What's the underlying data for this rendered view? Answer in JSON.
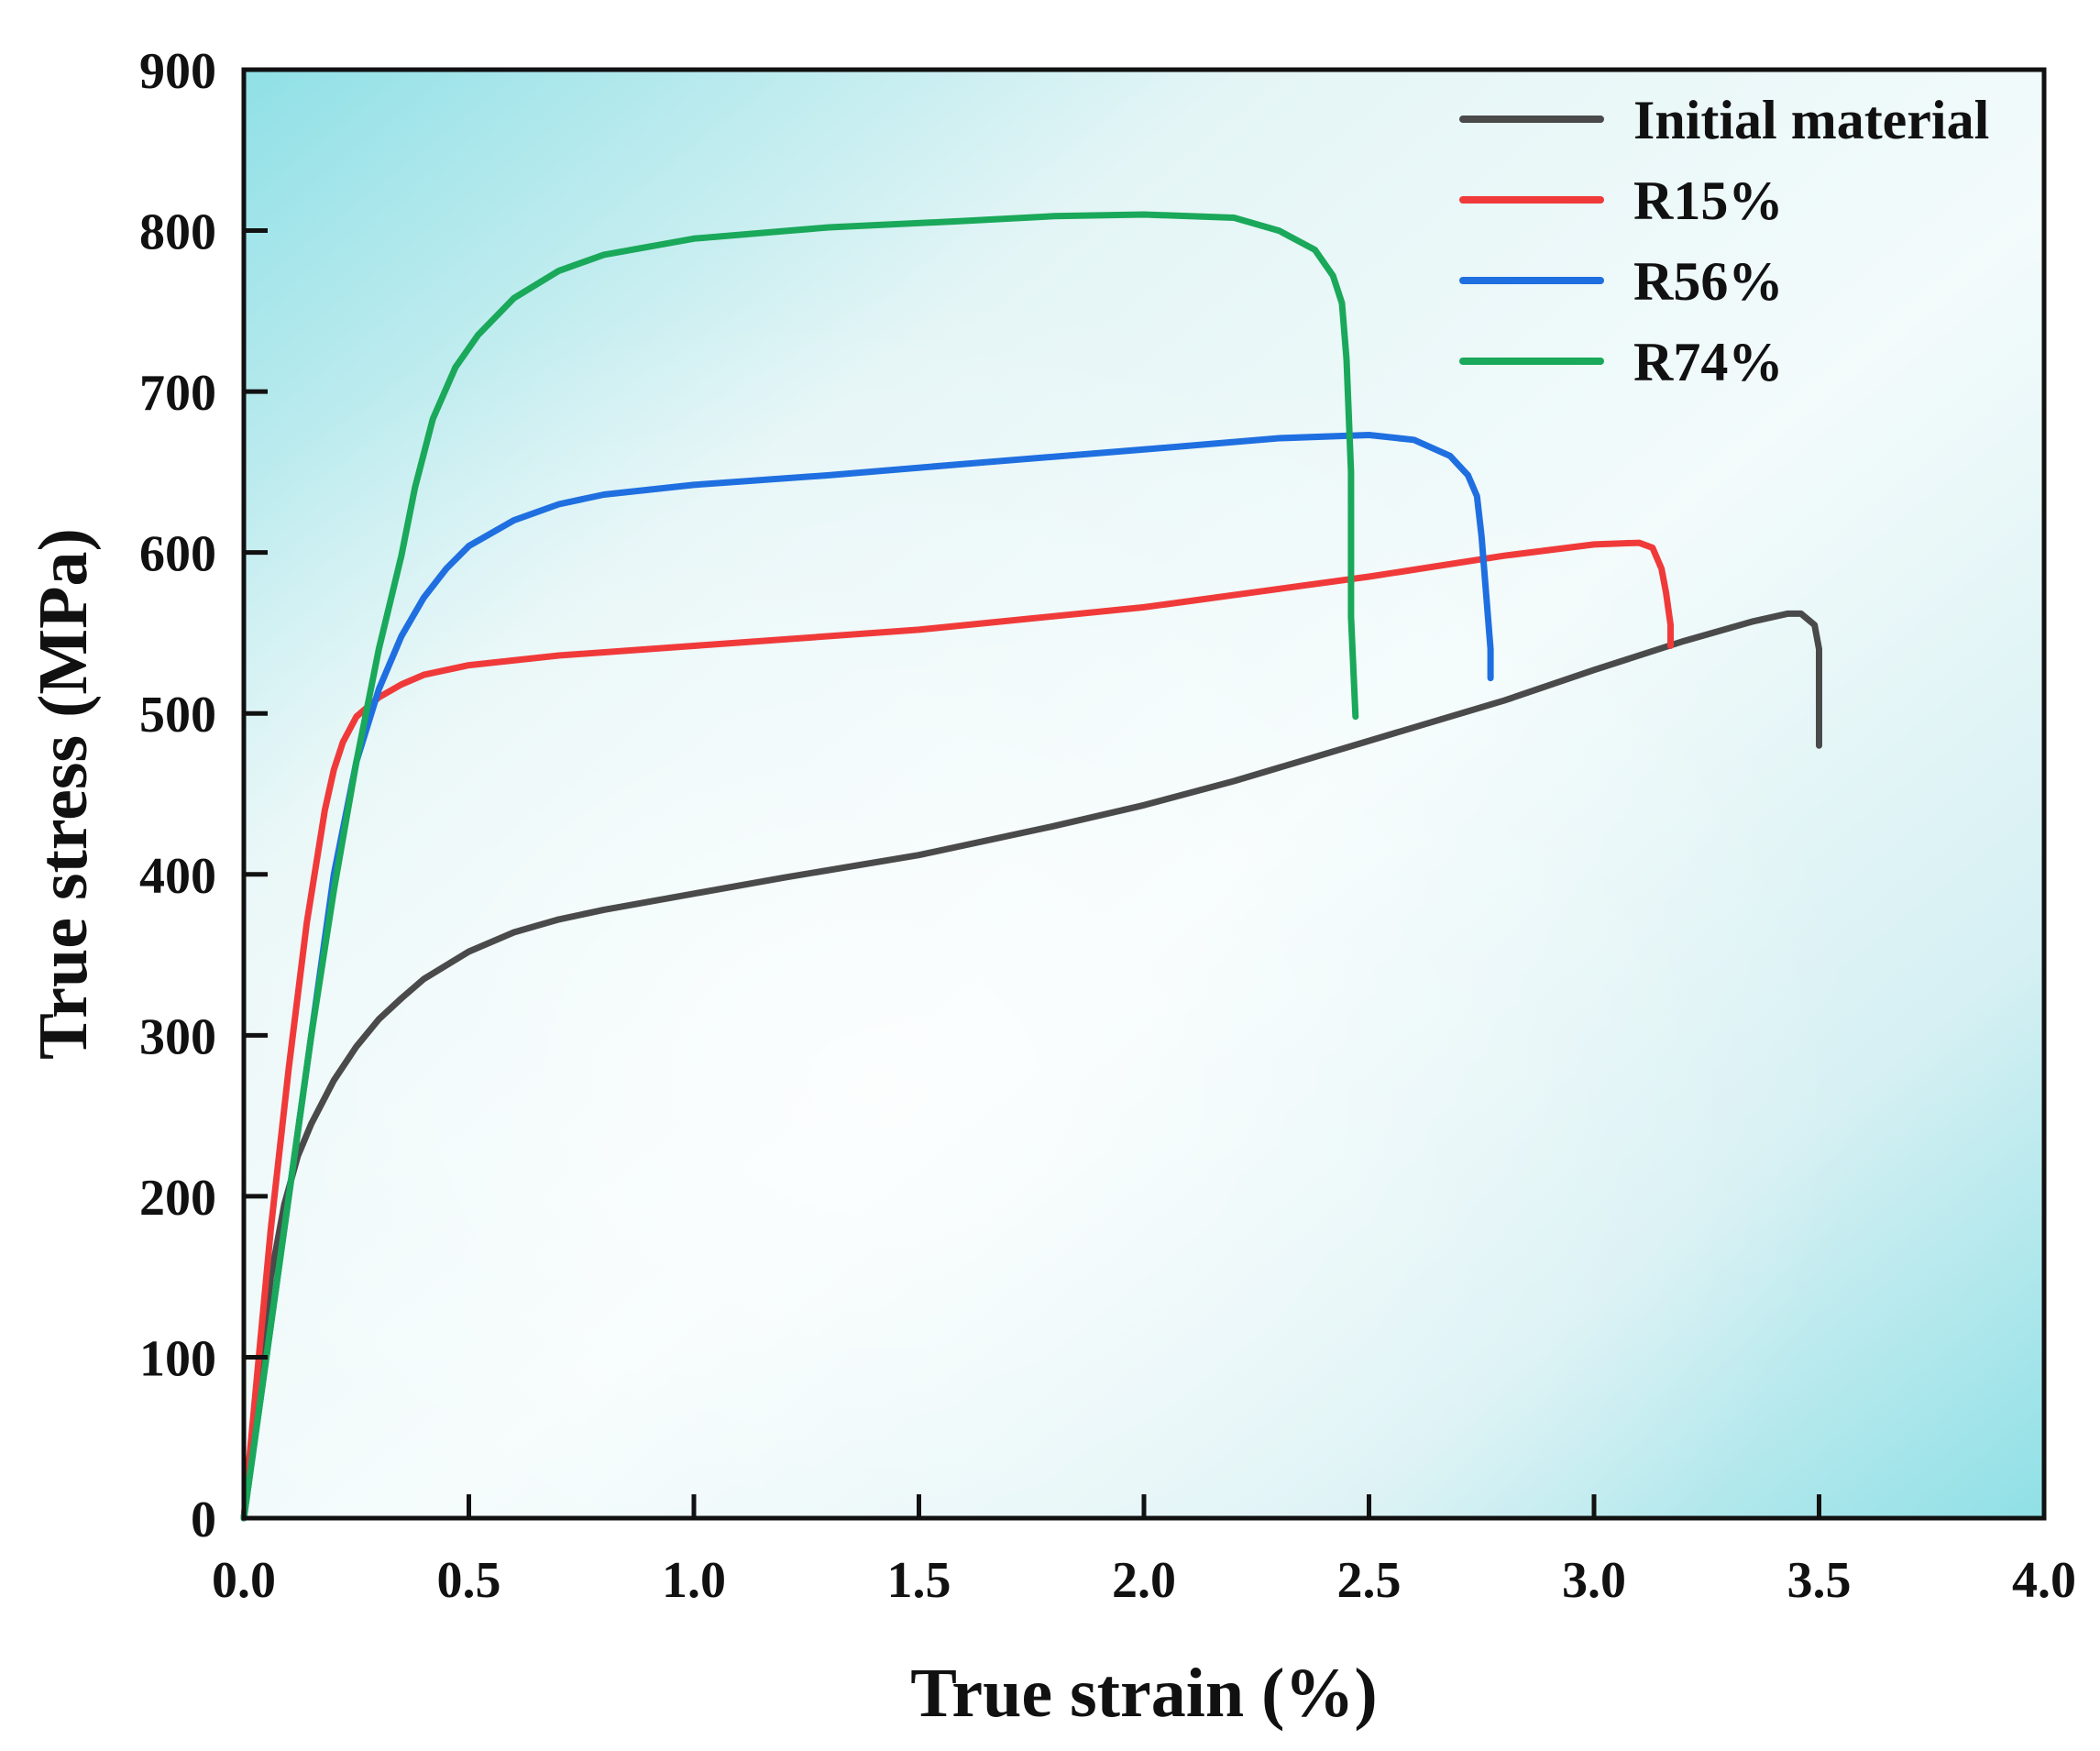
{
  "chart_data": {
    "type": "line",
    "title": "",
    "xlabel": "True strain (%)",
    "ylabel": "True stress (MPa)",
    "xlim": [
      0,
      4
    ],
    "ylim": [
      0,
      900
    ],
    "xticks": [
      0.0,
      0.5,
      1.0,
      1.5,
      2.0,
      2.5,
      3.0,
      3.5,
      4.0
    ],
    "xtick_labels": [
      "0.0",
      "0.5",
      "1.0",
      "1.5",
      "2.0",
      "2.5",
      "3.0",
      "3.5",
      "4.0"
    ],
    "yticks": [
      0,
      100,
      200,
      300,
      400,
      500,
      600,
      700,
      800,
      900
    ],
    "ytick_labels": [
      "0",
      "100",
      "200",
      "300",
      "400",
      "500",
      "600",
      "700",
      "800",
      "900"
    ],
    "grid": false,
    "legend_position": "top-right",
    "series": [
      {
        "name": "Initial material",
        "color": "#4a4a4a",
        "x": [
          0,
          0.03,
          0.06,
          0.09,
          0.12,
          0.15,
          0.2,
          0.25,
          0.3,
          0.35,
          0.4,
          0.5,
          0.6,
          0.7,
          0.8,
          1.0,
          1.2,
          1.5,
          1.8,
          2.0,
          2.2,
          2.5,
          2.8,
          3.0,
          3.2,
          3.35,
          3.43,
          3.46,
          3.49,
          3.5,
          3.5
        ],
        "y": [
          0,
          80,
          150,
          195,
          225,
          245,
          272,
          293,
          310,
          323,
          335,
          352,
          364,
          372,
          378,
          388,
          398,
          412,
          430,
          443,
          458,
          483,
          508,
          527,
          545,
          557,
          562,
          562,
          555,
          540,
          480
        ]
      },
      {
        "name": "R15%",
        "color": "#f03a3a",
        "x": [
          0,
          0.03,
          0.06,
          0.1,
          0.14,
          0.18,
          0.2,
          0.22,
          0.25,
          0.3,
          0.35,
          0.4,
          0.5,
          0.7,
          1.0,
          1.5,
          2.0,
          2.5,
          2.8,
          3.0,
          3.1,
          3.13,
          3.15,
          3.16,
          3.17,
          3.17
        ],
        "y": [
          0,
          90,
          180,
          280,
          370,
          440,
          465,
          482,
          498,
          510,
          518,
          524,
          530,
          536,
          542,
          552,
          566,
          585,
          598,
          605,
          606,
          603,
          590,
          575,
          555,
          542
        ]
      },
      {
        "name": "R56%",
        "color": "#1f6fe0",
        "x": [
          0,
          0.05,
          0.1,
          0.15,
          0.2,
          0.25,
          0.3,
          0.35,
          0.4,
          0.45,
          0.5,
          0.6,
          0.7,
          0.8,
          1.0,
          1.3,
          1.6,
          2.0,
          2.3,
          2.5,
          2.6,
          2.68,
          2.72,
          2.74,
          2.75,
          2.76,
          2.77,
          2.77
        ],
        "y": [
          0,
          100,
          200,
          300,
          400,
          470,
          515,
          548,
          572,
          590,
          604,
          620,
          630,
          636,
          642,
          648,
          655,
          664,
          671,
          673,
          670,
          660,
          648,
          635,
          610,
          575,
          540,
          522
        ]
      },
      {
        "name": "R74%",
        "color": "#1aa85a",
        "x": [
          0,
          0.05,
          0.1,
          0.15,
          0.2,
          0.25,
          0.3,
          0.35,
          0.38,
          0.42,
          0.47,
          0.52,
          0.6,
          0.7,
          0.8,
          1.0,
          1.3,
          1.6,
          1.8,
          2.0,
          2.2,
          2.3,
          2.38,
          2.42,
          2.44,
          2.45,
          2.46,
          2.46,
          2.47
        ],
        "y": [
          0,
          100,
          200,
          300,
          390,
          470,
          540,
          598,
          640,
          683,
          715,
          735,
          758,
          775,
          785,
          795,
          802,
          806,
          809,
          810,
          808,
          800,
          788,
          772,
          755,
          720,
          650,
          560,
          498
        ]
      }
    ]
  }
}
